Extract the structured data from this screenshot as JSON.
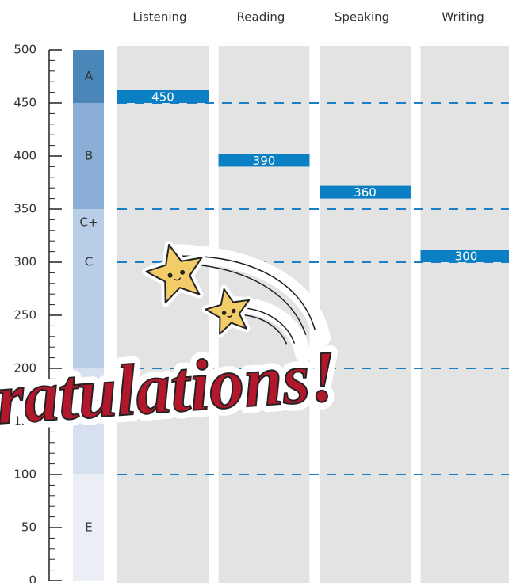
{
  "chart_data": {
    "type": "bar",
    "categories": [
      "Listening",
      "Reading",
      "Speaking",
      "Writing"
    ],
    "values": [
      450,
      390,
      360,
      300
    ],
    "color": "#0b7fc3",
    "ylim": [
      0,
      500
    ],
    "yticks": [
      0,
      50,
      100,
      150,
      200,
      250,
      300,
      350,
      400,
      450,
      500
    ],
    "reference_lines": [
      450,
      350,
      300,
      200,
      100
    ],
    "reference_color": "#1a7fc6",
    "grade_bands": [
      {
        "label": "A",
        "from": 450,
        "to": 500,
        "color": "#4a86b8"
      },
      {
        "label": "B",
        "from": 350,
        "to": 450,
        "color": "#8aaed6"
      },
      {
        "label": "C+",
        "from": 325,
        "to": 350,
        "color": "#b8cde6"
      },
      {
        "label": "C",
        "from": 275,
        "to": 325,
        "color": "#b8cde6"
      },
      {
        "label": null,
        "from": 200,
        "to": 275,
        "color": "#b8cde6"
      },
      {
        "label": null,
        "from": 100,
        "to": 200,
        "color": "#d6e0f0"
      },
      {
        "label": "E",
        "from": 0,
        "to": 100,
        "color": "#eceef5"
      }
    ],
    "annotation": "Congratulations!"
  }
}
